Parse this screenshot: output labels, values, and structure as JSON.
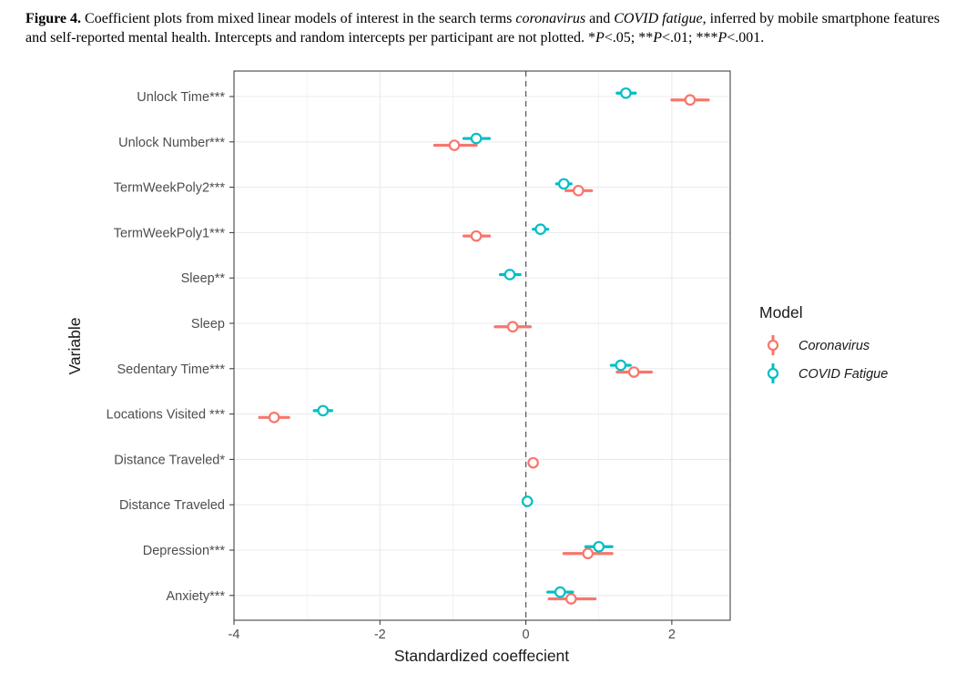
{
  "caption": {
    "label": "Figure 4.",
    "text_parts": [
      {
        "text": " Coefficient plots from mixed linear models of interest in the search terms ",
        "italic": false
      },
      {
        "text": "coronavirus",
        "italic": true
      },
      {
        "text": " and ",
        "italic": false
      },
      {
        "text": "COVID fatigue",
        "italic": true
      },
      {
        "text": ", inferred by mobile smartphone features and self-reported mental health. Intercepts and random intercepts per participant are not plotted. *",
        "italic": false
      },
      {
        "text": "P",
        "italic": true
      },
      {
        "text": "<.05; **",
        "italic": false
      },
      {
        "text": "P",
        "italic": true
      },
      {
        "text": "<.01; ***",
        "italic": false
      },
      {
        "text": "P",
        "italic": true
      },
      {
        "text": "<.001.",
        "italic": false
      }
    ]
  },
  "chart_data": {
    "type": "scatter",
    "subtype": "coefficient-plot",
    "xlabel": "Standardized coeffecient",
    "ylabel": "Variable",
    "xlim": [
      -4,
      2.8
    ],
    "x_ticks": [
      -4,
      -2,
      0,
      2
    ],
    "x_tick_labels": [
      "-4",
      "-2",
      "0",
      "2"
    ],
    "reference_line": {
      "x": 0,
      "style": "dashed"
    },
    "grid": true,
    "legend": {
      "title": "Model",
      "position": "right"
    },
    "categories": [
      "Unlock Time***",
      "Unlock Number***",
      "TermWeekPoly2***",
      "TermWeekPoly1***",
      "Sleep**",
      "Sleep",
      "Sedentary Time***",
      "Locations Visited ***",
      "Distance Traveled*",
      "Distance Traveled",
      "Depression***",
      "Anxiety***"
    ],
    "series": [
      {
        "name": "Coronavirus",
        "color": "#F8766D",
        "points": [
          {
            "category": "Unlock Time***",
            "estimate": 2.25,
            "low": 2.0,
            "high": 2.5
          },
          {
            "category": "Unlock Number***",
            "estimate": -0.98,
            "low": -1.25,
            "high": -0.68
          },
          {
            "category": "TermWeekPoly2***",
            "estimate": 0.72,
            "low": 0.55,
            "high": 0.9
          },
          {
            "category": "TermWeekPoly1***",
            "estimate": -0.68,
            "low": -0.85,
            "high": -0.5
          },
          {
            "category": "Sleep",
            "estimate": -0.18,
            "low": -0.42,
            "high": 0.06
          },
          {
            "category": "Sedentary Time***",
            "estimate": 1.48,
            "low": 1.25,
            "high": 1.72
          },
          {
            "category": "Locations Visited ***",
            "estimate": -3.45,
            "low": -3.65,
            "high": -3.25
          },
          {
            "category": "Distance Traveled*",
            "estimate": 0.1,
            "low": 0.05,
            "high": 0.15
          },
          {
            "category": "Depression***",
            "estimate": 0.85,
            "low": 0.52,
            "high": 1.18
          },
          {
            "category": "Anxiety***",
            "estimate": 0.62,
            "low": 0.32,
            "high": 0.95
          }
        ]
      },
      {
        "name": "COVID Fatigue",
        "color": "#00BFC4",
        "points": [
          {
            "category": "Unlock Time***",
            "estimate": 1.37,
            "low": 1.25,
            "high": 1.5
          },
          {
            "category": "Unlock Number***",
            "estimate": -0.68,
            "low": -0.85,
            "high": -0.5
          },
          {
            "category": "TermWeekPoly2***",
            "estimate": 0.52,
            "low": 0.42,
            "high": 0.62
          },
          {
            "category": "TermWeekPoly1***",
            "estimate": 0.2,
            "low": 0.1,
            "high": 0.3
          },
          {
            "category": "Sleep**",
            "estimate": -0.22,
            "low": -0.35,
            "high": -0.08
          },
          {
            "category": "Sedentary Time***",
            "estimate": 1.3,
            "low": 1.17,
            "high": 1.43
          },
          {
            "category": "Locations Visited ***",
            "estimate": -2.78,
            "low": -2.9,
            "high": -2.66
          },
          {
            "category": "Distance Traveled",
            "estimate": 0.02,
            "low": -0.02,
            "high": 0.06
          },
          {
            "category": "Depression***",
            "estimate": 1.0,
            "low": 0.82,
            "high": 1.18
          },
          {
            "category": "Anxiety***",
            "estimate": 0.47,
            "low": 0.3,
            "high": 0.64
          }
        ]
      }
    ]
  }
}
